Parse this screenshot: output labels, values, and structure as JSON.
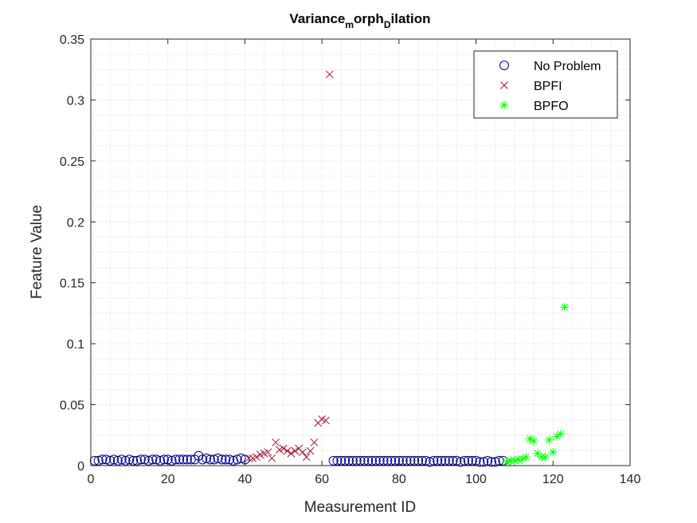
{
  "chart_data": {
    "type": "scatter",
    "title": {
      "base": "Variance",
      "sub1": "m",
      "mid": "orph",
      "sub2": "D",
      "end": "ilation"
    },
    "xlabel": "Measurement ID",
    "ylabel": "Feature Value",
    "xlim": [
      0,
      140
    ],
    "ylim": [
      0,
      0.35
    ],
    "xticks": [
      0,
      20,
      40,
      60,
      80,
      100,
      120,
      140
    ],
    "xtick_labels": [
      "0",
      "20",
      "40",
      "60",
      "80",
      "100",
      "120",
      "140"
    ],
    "yticks": [
      0,
      0.05,
      0.1,
      0.15,
      0.2,
      0.25,
      0.3,
      0.35
    ],
    "ytick_labels": [
      "0",
      "0.05",
      "0.1",
      "0.15",
      "0.2",
      "0.25",
      "0.3",
      "0.35"
    ],
    "grid": "on (major and minor dotted)",
    "legend_placement": "top-right",
    "series": [
      {
        "name": "No Problem",
        "marker": "circle",
        "color": "#00008B",
        "x": [
          1,
          2,
          3,
          4,
          5,
          6,
          7,
          8,
          9,
          10,
          11,
          12,
          13,
          14,
          15,
          16,
          17,
          18,
          19,
          20,
          21,
          22,
          23,
          24,
          25,
          26,
          27,
          28,
          29,
          30,
          31,
          32,
          33,
          34,
          35,
          36,
          37,
          38,
          39,
          40,
          63,
          64,
          65,
          66,
          67,
          68,
          69,
          70,
          71,
          72,
          73,
          74,
          75,
          76,
          77,
          78,
          79,
          80,
          81,
          82,
          83,
          84,
          85,
          86,
          87,
          88,
          89,
          90,
          91,
          92,
          93,
          94,
          95,
          96,
          97,
          98,
          99,
          100,
          101,
          102,
          103,
          104,
          105,
          106,
          107
        ],
        "y": [
          0.004,
          0.004,
          0.005,
          0.005,
          0.004,
          0.005,
          0.004,
          0.005,
          0.004,
          0.005,
          0.004,
          0.004,
          0.005,
          0.005,
          0.004,
          0.005,
          0.005,
          0.004,
          0.005,
          0.005,
          0.004,
          0.005,
          0.005,
          0.005,
          0.005,
          0.005,
          0.005,
          0.008,
          0.005,
          0.006,
          0.005,
          0.005,
          0.006,
          0.005,
          0.005,
          0.005,
          0.004,
          0.005,
          0.006,
          0.005,
          0.004,
          0.004,
          0.004,
          0.004,
          0.004,
          0.004,
          0.004,
          0.004,
          0.004,
          0.004,
          0.004,
          0.004,
          0.004,
          0.004,
          0.004,
          0.004,
          0.004,
          0.004,
          0.004,
          0.004,
          0.004,
          0.004,
          0.004,
          0.004,
          0.004,
          0.003,
          0.004,
          0.004,
          0.004,
          0.004,
          0.004,
          0.004,
          0.004,
          0.003,
          0.004,
          0.004,
          0.004,
          0.004,
          0.003,
          0.003,
          0.004,
          0.003,
          0.003,
          0.004,
          0.004
        ]
      },
      {
        "name": "BPFI",
        "marker": "x",
        "color": "#A2142F",
        "x": [
          41,
          42,
          43,
          44,
          45,
          46,
          47,
          48,
          49,
          50,
          51,
          52,
          53,
          54,
          55,
          56,
          57,
          58,
          59,
          60,
          61,
          62
        ],
        "y": [
          0.006,
          0.006,
          0.007,
          0.009,
          0.01,
          0.011,
          0.006,
          0.019,
          0.013,
          0.014,
          0.012,
          0.01,
          0.012,
          0.014,
          0.011,
          0.007,
          0.012,
          0.019,
          0.035,
          0.038,
          0.037,
          0.321
        ]
      },
      {
        "name": "BPFO",
        "marker": "star",
        "color": "#00FF00",
        "x": [
          108,
          109,
          110,
          111,
          112,
          113,
          114,
          115,
          116,
          117,
          118,
          119,
          120,
          121,
          122,
          123
        ],
        "y": [
          0.003,
          0.004,
          0.004,
          0.005,
          0.005,
          0.007,
          0.022,
          0.02,
          0.01,
          0.007,
          0.007,
          0.021,
          0.011,
          0.024,
          0.026,
          0.13
        ]
      }
    ]
  }
}
